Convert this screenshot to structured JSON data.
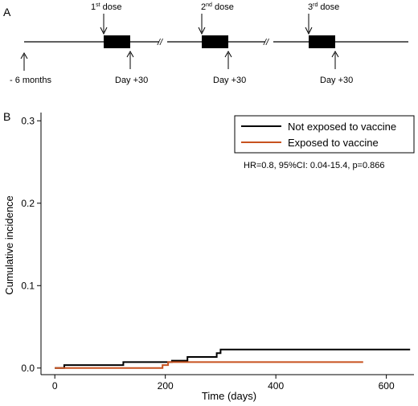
{
  "panel_a": {
    "label": "A",
    "doses": [
      {
        "ordinal": "1",
        "suffix": "st",
        "word": " dose",
        "end_label": "Day +30"
      },
      {
        "ordinal": "2",
        "suffix": "nd",
        "word": " dose",
        "end_label": "Day +30"
      },
      {
        "ordinal": "3",
        "suffix": "rd",
        "word": " dose",
        "end_label": "Day +30"
      }
    ],
    "start_label": "- 6 months",
    "break_mark": "//"
  },
  "panel_b": {
    "label": "B"
  },
  "annotation": "HR=0.8, 95%CI: 0.04-15.4, p=0.866",
  "chart_data": {
    "type": "line",
    "subtype": "step",
    "title": "",
    "xlabel": "Time (days)",
    "ylabel": "Cumulative incidence",
    "xlim": [
      -25,
      650
    ],
    "ylim": [
      -0.008,
      0.31
    ],
    "xticks": [
      0,
      200,
      400,
      600
    ],
    "xtick_labels": [
      "0",
      "200",
      "400",
      "600"
    ],
    "yticks": [
      0.0,
      0.1,
      0.2,
      0.3
    ],
    "ytick_labels": [
      "0.0",
      "0.1",
      "0.2",
      "0.3"
    ],
    "grid": false,
    "legend_position": "top-right",
    "series": [
      {
        "name": "Not exposed to vaccine",
        "color": "#000000",
        "x": [
          0,
          17,
          17,
          124,
          124,
          212,
          212,
          240,
          240,
          293,
          293,
          300,
          300,
          643
        ],
        "y": [
          0,
          0,
          0.0036,
          0.0036,
          0.0072,
          0.0072,
          0.009,
          0.009,
          0.0135,
          0.0135,
          0.018,
          0.018,
          0.0225,
          0.0225
        ]
      },
      {
        "name": "Exposed to vaccine",
        "color": "#c8521f",
        "x": [
          0,
          195,
          195,
          205,
          205,
          558
        ],
        "y": [
          0,
          0,
          0.0036,
          0.0036,
          0.0072,
          0.0072
        ]
      }
    ]
  }
}
